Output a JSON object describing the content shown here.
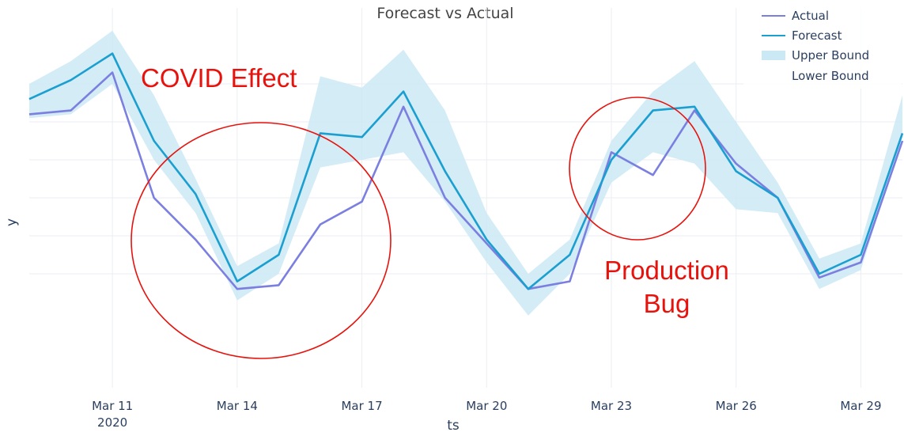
{
  "chart_data": {
    "type": "line",
    "title": "Forecast vs Actual",
    "xlabel": "ts",
    "ylabel": "y",
    "x": [
      "2020-03-09",
      "2020-03-10",
      "2020-03-11",
      "2020-03-12",
      "2020-03-13",
      "2020-03-14",
      "2020-03-15",
      "2020-03-16",
      "2020-03-17",
      "2020-03-18",
      "2020-03-19",
      "2020-03-20",
      "2020-03-21",
      "2020-03-22",
      "2020-03-23",
      "2020-03-24",
      "2020-03-25",
      "2020-03-26",
      "2020-03-27",
      "2020-03-28",
      "2020-03-29",
      "2020-03-30"
    ],
    "x_ticks": [
      {
        "date": "2020-03-11",
        "label": "Mar 11",
        "sublabel": "2020"
      },
      {
        "date": "2020-03-14",
        "label": "Mar 14"
      },
      {
        "date": "2020-03-17",
        "label": "Mar 17"
      },
      {
        "date": "2020-03-20",
        "label": "Mar 20"
      },
      {
        "date": "2020-03-23",
        "label": "Mar 23"
      },
      {
        "date": "2020-03-26",
        "label": "Mar 26"
      },
      {
        "date": "2020-03-29",
        "label": "Mar 29"
      }
    ],
    "xlim": [
      "2020-03-09",
      "2020-03-30"
    ],
    "ylim": [
      0,
      10
    ],
    "y_gridlines": [
      3,
      4,
      5,
      6,
      7,
      8
    ],
    "grid": true,
    "legend_position": "top-right",
    "series": [
      {
        "name": "Actual",
        "color": "#7b7fe0",
        "values": [
          7.2,
          7.3,
          8.3,
          5.0,
          3.9,
          2.6,
          2.7,
          4.3,
          4.9,
          7.4,
          5.0,
          3.8,
          2.6,
          2.8,
          6.2,
          5.6,
          7.3,
          5.9,
          5.0,
          2.9,
          3.3,
          6.5
        ]
      },
      {
        "name": "Forecast",
        "color": "#1a9fd0",
        "values": [
          7.6,
          8.1,
          8.8,
          6.5,
          5.1,
          2.8,
          3.5,
          6.7,
          6.6,
          7.8,
          5.7,
          3.9,
          2.6,
          3.5,
          6.0,
          7.3,
          7.4,
          5.7,
          5.0,
          3.0,
          3.5,
          6.7
        ]
      },
      {
        "name": "Upper Bound",
        "color": "#cbe9f5",
        "values": [
          8.0,
          8.6,
          9.4,
          7.7,
          5.5,
          3.2,
          3.8,
          8.2,
          7.9,
          8.9,
          7.3,
          4.6,
          3.0,
          3.9,
          6.5,
          7.8,
          8.6,
          7.0,
          5.4,
          3.4,
          3.8,
          7.7
        ]
      },
      {
        "name": "Lower Bound",
        "color": "#cbe9f5",
        "values": [
          7.1,
          7.2,
          8.0,
          6.0,
          4.6,
          2.3,
          3.0,
          5.8,
          6.0,
          6.2,
          4.9,
          3.3,
          1.9,
          3.0,
          5.4,
          6.2,
          5.9,
          4.7,
          4.6,
          2.6,
          3.1,
          6.6
        ]
      }
    ],
    "annotations": [
      {
        "text": "COVID Effect"
      },
      {
        "text": "Production Bug"
      }
    ]
  }
}
